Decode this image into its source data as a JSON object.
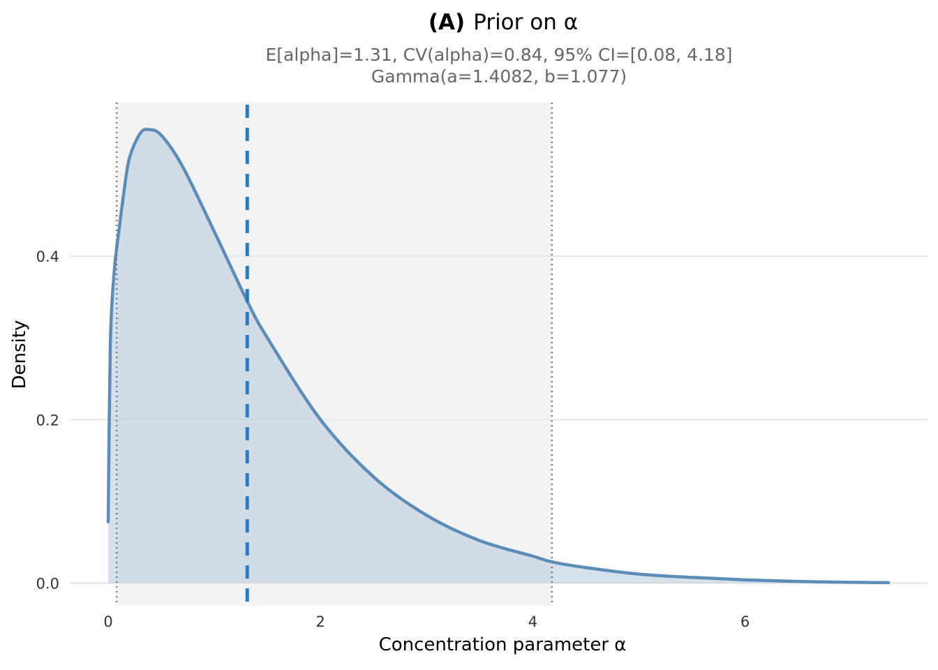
{
  "chart_data": {
    "type": "area",
    "title_prefix": "(A)",
    "title_main": "Prior on α",
    "subtitle_line1": "E[alpha]=1.31,  CV(alpha)=0.84,  95% CI=[0.08, 4.18]",
    "subtitle_line2": "Gamma(a=1.4082, b=1.077)",
    "xlabel": "Concentration parameter α",
    "ylabel": "Density",
    "xlim": [
      0,
      7.35
    ],
    "ylim": [
      0,
      0.56
    ],
    "x_ticks": [
      0,
      2,
      4,
      6
    ],
    "x_tick_labels": [
      "0",
      "2",
      "4",
      "6"
    ],
    "y_ticks": [
      0.0,
      0.2,
      0.4
    ],
    "y_tick_labels": [
      "0.0",
      "0.2",
      "0.4"
    ],
    "grid": "horizontal",
    "legend": "none",
    "distribution": {
      "family": "gamma",
      "shape": 1.4082,
      "rate": 1.077
    },
    "mean": 1.31,
    "ci_lower": 0.08,
    "ci_upper": 4.18,
    "x": [
      0,
      0.02,
      0.05,
      0.08,
      0.1,
      0.15,
      0.2,
      0.3,
      0.38,
      0.5,
      0.7,
      1.0,
      1.31,
      1.5,
      2.0,
      2.5,
      3.0,
      3.5,
      4.0,
      4.18,
      4.5,
      5.0,
      5.5,
      6.0,
      6.5,
      7.0,
      7.35
    ],
    "y": [
      0.075,
      0.29,
      0.37,
      0.41,
      0.43,
      0.48,
      0.52,
      0.55,
      0.555,
      0.548,
      0.51,
      0.43,
      0.345,
      0.3,
      0.2,
      0.13,
      0.083,
      0.052,
      0.033,
      0.026,
      0.019,
      0.011,
      0.007,
      0.004,
      0.002,
      0.001,
      0.0005
    ],
    "colors": {
      "curve": "#5b8db8",
      "curve_edge": "#4a7fb0",
      "fill": "#b4c9dd",
      "ci_band": "#ececec",
      "mean_line": "#2f78b8",
      "ci_line": "#777777",
      "grid": "#e6e6e6",
      "title": "#000000",
      "subtitle": "#666666",
      "tick": "#333333"
    }
  }
}
